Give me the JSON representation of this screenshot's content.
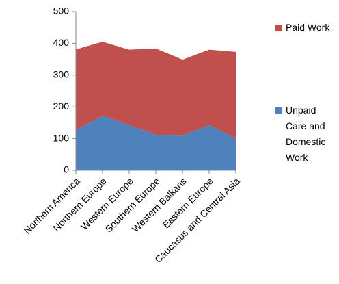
{
  "chart_data": {
    "type": "area",
    "stacked": true,
    "categories": [
      "Northern America",
      "Northern Europe",
      "Western Europe",
      "Southern Europe",
      "Western Balkans",
      "Eastern Europe",
      "Caucasus and Central Asia"
    ],
    "series": [
      {
        "name": "Unpaid Care and Domestic Work",
        "color": "#4f81bd",
        "values": [
          127,
          172,
          143,
          112,
          109,
          143,
          101
        ]
      },
      {
        "name": "Paid Work",
        "color": "#c0504d",
        "values": [
          254,
          233,
          237,
          272,
          240,
          237,
          272
        ]
      }
    ],
    "ylim": [
      0,
      500
    ],
    "yticks": [
      0,
      100,
      200,
      300,
      400,
      500
    ],
    "grid": false,
    "legend": "right"
  }
}
